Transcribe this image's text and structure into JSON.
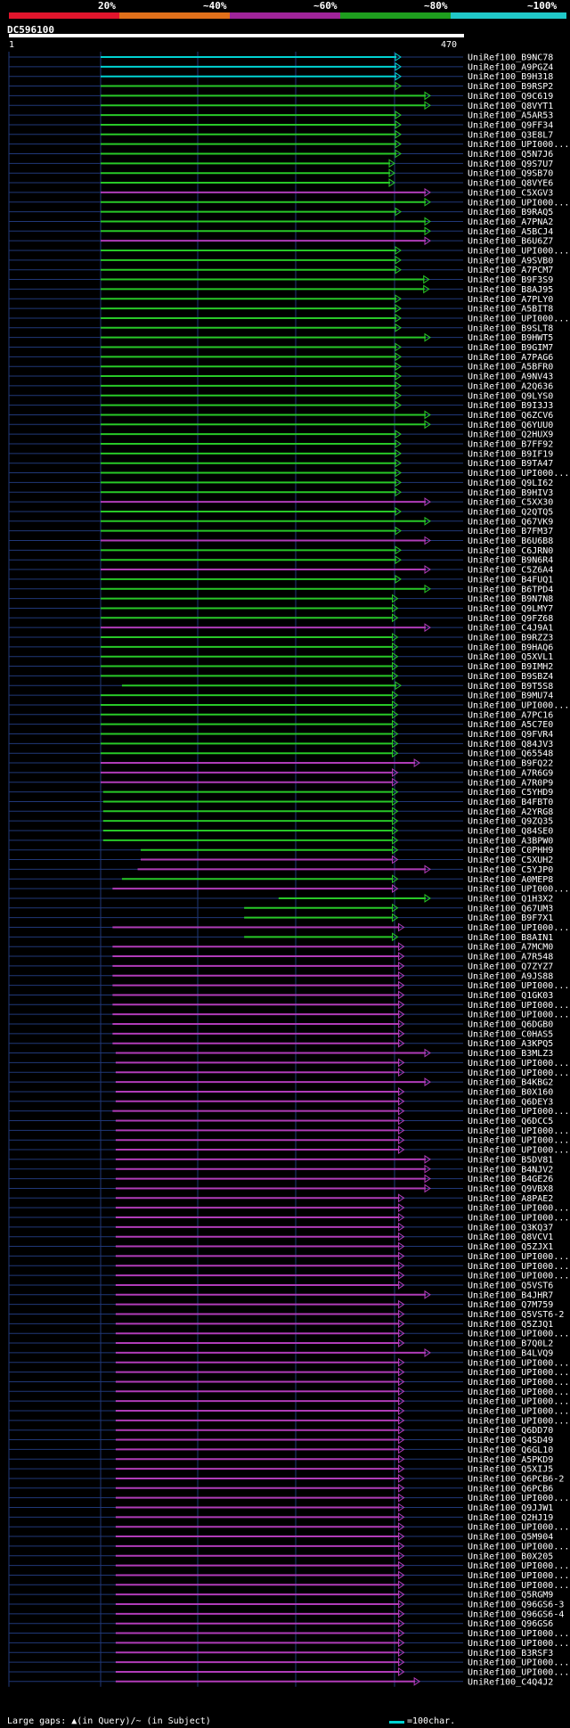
{
  "identity_scale": {
    "labels": [
      "20%",
      "~40%",
      "~60%",
      "~80%",
      "~100%"
    ],
    "colors": [
      "#e0152c",
      "#e0701a",
      "#a0249a",
      "#1e9e1e",
      "#20c8c8"
    ]
  },
  "query": {
    "id": "DC596100",
    "start": "1",
    "end": "470",
    "length": 470
  },
  "legend": {
    "gaps_text": "Large gaps: ▲(in Query)/~ (in Subject)",
    "scale_text": "=100char."
  },
  "colors": {
    "background": "#000000",
    "cyan": "#00d2d2",
    "green": "#28c828",
    "magenta": "#b03cb8",
    "triangle": "#ffff90",
    "gridline": "#203878"
  },
  "hits": [
    {
      "id": "UniRef100_B9NC78",
      "c": "c",
      "s": 1,
      "e": 480
    },
    {
      "id": "UniRef100_A9PGZ4",
      "c": "c",
      "s": 1,
      "e": 480
    },
    {
      "id": "UniRef100_B9H318",
      "c": "c",
      "s": 1,
      "e": 480
    },
    {
      "id": "UniRef100_B9RSP2",
      "c": "g",
      "s": 1,
      "e": 480
    },
    {
      "id": "UniRef100_Q9C619",
      "c": "g",
      "s": 1,
      "e": 530
    },
    {
      "id": "UniRef100_Q8VYT1",
      "c": "g",
      "s": 1,
      "e": 530
    },
    {
      "id": "UniRef100_A5AR53",
      "c": "g",
      "s": 1,
      "e": 480
    },
    {
      "id": "UniRef100_Q9FF34",
      "c": "g",
      "s": 1,
      "e": 480
    },
    {
      "id": "UniRef100_Q3E8L7",
      "c": "g",
      "s": 1,
      "e": 480
    },
    {
      "id": "UniRef100_UPI000...",
      "c": "g",
      "s": 1,
      "e": 480
    },
    {
      "id": "UniRef100_Q5N7J6",
      "c": "g",
      "s": 1,
      "e": 480
    },
    {
      "id": "UniRef100_Q9S7U7",
      "c": "g",
      "s": 1,
      "e": 470
    },
    {
      "id": "UniRef100_Q9SB70",
      "c": "g",
      "s": 1,
      "e": 470
    },
    {
      "id": "UniRef100_Q8VYE6",
      "c": "g",
      "s": 1,
      "e": 470
    },
    {
      "id": "UniRef100_C5XGV3",
      "c": "m",
      "s": 1,
      "e": 530
    },
    {
      "id": "UniRef100_UPI000...",
      "c": "g",
      "s": 1,
      "e": 530
    },
    {
      "id": "UniRef100_B9RAQ5",
      "c": "g",
      "s": 1,
      "e": 480
    },
    {
      "id": "UniRef100_A7PNA2",
      "c": "g",
      "s": 1,
      "e": 530
    },
    {
      "id": "UniRef100_A5BCJ4",
      "c": "g",
      "s": 1,
      "e": 530
    },
    {
      "id": "UniRef100_B6U6Z7",
      "c": "m",
      "s": 1,
      "e": 530
    },
    {
      "id": "UniRef100_UPI000...",
      "c": "g",
      "s": 1,
      "e": 480
    },
    {
      "id": "UniRef100_A9SVB0",
      "c": "g",
      "s": 1,
      "e": 480
    },
    {
      "id": "UniRef100_A7PCM7",
      "c": "g",
      "s": 1,
      "e": 480
    },
    {
      "id": "UniRef100_B9F3S9",
      "c": "g",
      "s": 1,
      "e": 525
    },
    {
      "id": "UniRef100_B8AJ95",
      "c": "g",
      "s": 1,
      "e": 525
    },
    {
      "id": "UniRef100_A7PLY0",
      "c": "g",
      "s": 1,
      "e": 480
    },
    {
      "id": "UniRef100_A5BIT8",
      "c": "g",
      "s": 1,
      "e": 480
    },
    {
      "id": "UniRef100_UPI000...",
      "c": "g",
      "s": 1,
      "e": 480
    },
    {
      "id": "UniRef100_B9SLT8",
      "c": "g",
      "s": 1,
      "e": 480
    },
    {
      "id": "UniRef100_B9HWT5",
      "c": "g",
      "s": 1,
      "e": 530
    },
    {
      "id": "UniRef100_B9GIM7",
      "c": "g",
      "s": 1,
      "e": 480
    },
    {
      "id": "UniRef100_A7PAG6",
      "c": "g",
      "s": 1,
      "e": 480
    },
    {
      "id": "UniRef100_A5BFR0",
      "c": "g",
      "s": 1,
      "e": 480
    },
    {
      "id": "UniRef100_A9NV43",
      "c": "g",
      "s": 1,
      "e": 480
    },
    {
      "id": "UniRef100_A2Q636",
      "c": "g",
      "s": 1,
      "e": 480
    },
    {
      "id": "UniRef100_Q9LYS0",
      "c": "g",
      "s": 1,
      "e": 480
    },
    {
      "id": "UniRef100_B9I3J3",
      "c": "g",
      "s": 1,
      "e": 480
    },
    {
      "id": "UniRef100_Q6ZCV6",
      "c": "g",
      "s": 1,
      "e": 530
    },
    {
      "id": "UniRef100_Q6YUU0",
      "c": "g",
      "s": 1,
      "e": 530
    },
    {
      "id": "UniRef100_Q2HUX9",
      "c": "g",
      "s": 1,
      "e": 480
    },
    {
      "id": "UniRef100_B7FF92",
      "c": "g",
      "s": 1,
      "e": 480
    },
    {
      "id": "UniRef100_B9IF19",
      "c": "g",
      "s": 1,
      "e": 480
    },
    {
      "id": "UniRef100_B9TA47",
      "c": "g",
      "s": 1,
      "e": 480
    },
    {
      "id": "UniRef100_UPI000...",
      "c": "g",
      "s": 1,
      "e": 480
    },
    {
      "id": "UniRef100_Q9LI62",
      "c": "g",
      "s": 1,
      "e": 480
    },
    {
      "id": "UniRef100_B9HIV3",
      "c": "g",
      "s": 1,
      "e": 480
    },
    {
      "id": "UniRef100_C5XX30",
      "c": "m",
      "s": 1,
      "e": 530
    },
    {
      "id": "UniRef100_Q2QTQ5",
      "c": "g",
      "s": 1,
      "e": 480
    },
    {
      "id": "UniRef100_Q67VK9",
      "c": "g",
      "s": 1,
      "e": 530
    },
    {
      "id": "UniRef100_B7FM37",
      "c": "g",
      "s": 1,
      "e": 480
    },
    {
      "id": "UniRef100_B6U6B8",
      "c": "m",
      "s": 1,
      "e": 530
    },
    {
      "id": "UniRef100_C6JRN0",
      "c": "g",
      "s": 1,
      "e": 480
    },
    {
      "id": "UniRef100_B9N6R4",
      "c": "g",
      "s": 1,
      "e": 480
    },
    {
      "id": "UniRef100_C5Z6A4",
      "c": "m",
      "s": 1,
      "e": 530
    },
    {
      "id": "UniRef100_B4FUQ1",
      "c": "g",
      "s": 1,
      "e": 480
    },
    {
      "id": "UniRef100_B6TPD4",
      "c": "g",
      "s": 1,
      "e": 530
    },
    {
      "id": "UniRef100_B9N7N8",
      "c": "g",
      "s": 1,
      "e": 475
    },
    {
      "id": "UniRef100_Q9LMY7",
      "c": "g",
      "s": 1,
      "e": 475
    },
    {
      "id": "UniRef100_Q9FZ68",
      "c": "g",
      "s": 1,
      "e": 475
    },
    {
      "id": "UniRef100_C4J9A1",
      "c": "m",
      "s": 1,
      "e": 530
    },
    {
      "id": "UniRef100_B9RZZ3",
      "c": "g",
      "s": 1,
      "e": 475
    },
    {
      "id": "UniRef100_B9HAQ6",
      "c": "g",
      "s": 1,
      "e": 475
    },
    {
      "id": "UniRef100_Q5XVL1",
      "c": "g",
      "s": 1,
      "e": 475
    },
    {
      "id": "UniRef100_B9IMH2",
      "c": "g",
      "s": 1,
      "e": 475
    },
    {
      "id": "UniRef100_B9SBZ4",
      "c": "g",
      "s": 1,
      "e": 475
    },
    {
      "id": "UniRef100_B9T5S8",
      "c": "g",
      "s": 35,
      "e": 480
    },
    {
      "id": "UniRef100_B9MU74",
      "c": "g",
      "s": 1,
      "e": 475
    },
    {
      "id": "UniRef100_UPI000...",
      "c": "g",
      "s": 1,
      "e": 475
    },
    {
      "id": "UniRef100_A7PC16",
      "c": "g",
      "s": 1,
      "e": 475
    },
    {
      "id": "UniRef100_A5C7E0",
      "c": "g",
      "s": 1,
      "e": 475
    },
    {
      "id": "UniRef100_Q9FVR4",
      "c": "g",
      "s": 1,
      "e": 475
    },
    {
      "id": "UniRef100_Q84JV3",
      "c": "g",
      "s": 1,
      "e": 475
    },
    {
      "id": "UniRef100_Q65548",
      "c": "g",
      "s": 1,
      "e": 475
    },
    {
      "id": "UniRef100_B9FQ22",
      "c": "m",
      "s": 1,
      "e": 510
    },
    {
      "id": "UniRef100_A7R6G9",
      "c": "m",
      "s": 1,
      "e": 475
    },
    {
      "id": "UniRef100_A7R0P9",
      "c": "m",
      "s": 1,
      "e": 475
    },
    {
      "id": "UniRef100_C5YHD9",
      "c": "g",
      "s": 5,
      "e": 475
    },
    {
      "id": "UniRef100_B4FBT0",
      "c": "g",
      "s": 5,
      "e": 475
    },
    {
      "id": "UniRef100_A2YRG8",
      "c": "g",
      "s": 5,
      "e": 475
    },
    {
      "id": "UniRef100_Q9ZQ35",
      "c": "g",
      "s": 5,
      "e": 475
    },
    {
      "id": "UniRef100_Q84SE0",
      "c": "g",
      "s": 5,
      "e": 475
    },
    {
      "id": "UniRef100_A3BPW0",
      "c": "g",
      "s": 5,
      "e": 475
    },
    {
      "id": "UniRef100_C0PHH9",
      "c": "g",
      "s": 65,
      "e": 475
    },
    {
      "id": "UniRef100_C5XUH2",
      "c": "m",
      "s": 65,
      "e": 475
    },
    {
      "id": "UniRef100_C5YJP0",
      "c": "m",
      "s": 60,
      "e": 530
    },
    {
      "id": "UniRef100_A0MEP8",
      "c": "g",
      "s": 35,
      "e": 475
    },
    {
      "id": "UniRef100_UPI000...",
      "c": "m",
      "s": 20,
      "e": 475
    },
    {
      "id": "UniRef100_Q1H3X2",
      "c": "g",
      "s": 285,
      "e": 530
    },
    {
      "id": "UniRef100_Q67UM3",
      "c": "g",
      "s": 230,
      "e": 475
    },
    {
      "id": "UniRef100_B9F7X1",
      "c": "g",
      "s": 230,
      "e": 475
    },
    {
      "id": "UniRef100_UPI000...",
      "c": "m",
      "s": 20,
      "e": 485
    },
    {
      "id": "UniRef100_B8AIN1",
      "c": "g",
      "s": 230,
      "e": 475
    },
    {
      "id": "UniRef100_A7MCM0",
      "c": "m",
      "s": 20,
      "e": 485
    },
    {
      "id": "UniRef100_A7R548",
      "c": "m",
      "s": 20,
      "e": 485
    },
    {
      "id": "UniRef100_Q7ZYZ7",
      "c": "m",
      "s": 20,
      "e": 485
    },
    {
      "id": "UniRef100_A9JS88",
      "c": "m",
      "s": 20,
      "e": 485
    },
    {
      "id": "UniRef100_UPI000...",
      "c": "m",
      "s": 20,
      "e": 485
    },
    {
      "id": "UniRef100_Q1GK03",
      "c": "m",
      "s": 20,
      "e": 485
    },
    {
      "id": "UniRef100_UPI000...",
      "c": "m",
      "s": 20,
      "e": 485
    },
    {
      "id": "UniRef100_UPI000...",
      "c": "m",
      "s": 20,
      "e": 485
    },
    {
      "id": "UniRef100_Q6DGB0",
      "c": "m",
      "s": 20,
      "e": 485
    },
    {
      "id": "UniRef100_C0HAS5",
      "c": "m",
      "s": 20,
      "e": 485
    },
    {
      "id": "UniRef100_A3KPQ5",
      "c": "m",
      "s": 20,
      "e": 485
    },
    {
      "id": "UniRef100_B3MLZ3",
      "c": "m",
      "s": 25,
      "e": 530
    },
    {
      "id": "UniRef100_UPI000...",
      "c": "m",
      "s": 25,
      "e": 485
    },
    {
      "id": "UniRef100_UPI000...",
      "c": "m",
      "s": 25,
      "e": 485
    },
    {
      "id": "UniRef100_B4KBG2",
      "c": "m",
      "s": 25,
      "e": 530
    },
    {
      "id": "UniRef100_B0X160",
      "c": "m",
      "s": 25,
      "e": 485
    },
    {
      "id": "UniRef100_Q6DEY3",
      "c": "m",
      "s": 25,
      "e": 485
    },
    {
      "id": "UniRef100_UPI000...",
      "c": "m",
      "s": 20,
      "e": 485
    },
    {
      "id": "UniRef100_Q6DCC5",
      "c": "m",
      "s": 25,
      "e": 485
    },
    {
      "id": "UniRef100_UPI000...",
      "c": "m",
      "s": 25,
      "e": 485
    },
    {
      "id": "UniRef100_UPI000...",
      "c": "m",
      "s": 25,
      "e": 485
    },
    {
      "id": "UniRef100_UPI000...",
      "c": "m",
      "s": 25,
      "e": 485
    },
    {
      "id": "UniRef100_B5DV81",
      "c": "m",
      "s": 25,
      "e": 530
    },
    {
      "id": "UniRef100_B4NJV2",
      "c": "m",
      "s": 25,
      "e": 530
    },
    {
      "id": "UniRef100_B4GE26",
      "c": "m",
      "s": 25,
      "e": 530
    },
    {
      "id": "UniRef100_Q9VBX8",
      "c": "m",
      "s": 25,
      "e": 530
    },
    {
      "id": "UniRef100_A8PAE2",
      "c": "m",
      "s": 25,
      "e": 485
    },
    {
      "id": "UniRef100_UPI000...",
      "c": "m",
      "s": 25,
      "e": 485
    },
    {
      "id": "UniRef100_UPI000...",
      "c": "m",
      "s": 25,
      "e": 485
    },
    {
      "id": "UniRef100_Q3KQ37",
      "c": "m",
      "s": 25,
      "e": 485
    },
    {
      "id": "UniRef100_Q8VCV1",
      "c": "m",
      "s": 25,
      "e": 485
    },
    {
      "id": "UniRef100_Q5ZJX1",
      "c": "m",
      "s": 25,
      "e": 485
    },
    {
      "id": "UniRef100_UPI000...",
      "c": "m",
      "s": 25,
      "e": 485
    },
    {
      "id": "UniRef100_UPI000...",
      "c": "m",
      "s": 25,
      "e": 485
    },
    {
      "id": "UniRef100_UPI000...",
      "c": "m",
      "s": 25,
      "e": 485
    },
    {
      "id": "UniRef100_Q5VST6",
      "c": "m",
      "s": 25,
      "e": 485
    },
    {
      "id": "UniRef100_B4JHR7",
      "c": "m",
      "s": 25,
      "e": 530
    },
    {
      "id": "UniRef100_Q7M759",
      "c": "m",
      "s": 25,
      "e": 485
    },
    {
      "id": "UniRef100_Q5VST6-2",
      "c": "m",
      "s": 25,
      "e": 485
    },
    {
      "id": "UniRef100_Q5ZJQ1",
      "c": "m",
      "s": 25,
      "e": 485
    },
    {
      "id": "UniRef100_UPI000...",
      "c": "m",
      "s": 25,
      "e": 485
    },
    {
      "id": "UniRef100_B7Q0L2",
      "c": "m",
      "s": 25,
      "e": 485
    },
    {
      "id": "UniRef100_B4LVQ9",
      "c": "m",
      "s": 25,
      "e": 530
    },
    {
      "id": "UniRef100_UPI000...",
      "c": "m",
      "s": 25,
      "e": 485
    },
    {
      "id": "UniRef100_UPI000...",
      "c": "m",
      "s": 25,
      "e": 485
    },
    {
      "id": "UniRef100_UPI000...",
      "c": "m",
      "s": 25,
      "e": 485
    },
    {
      "id": "UniRef100_UPI000...",
      "c": "m",
      "s": 25,
      "e": 485
    },
    {
      "id": "UniRef100_UPI000...",
      "c": "m",
      "s": 25,
      "e": 485
    },
    {
      "id": "UniRef100_UPI000...",
      "c": "m",
      "s": 25,
      "e": 485
    },
    {
      "id": "UniRef100_UPI000...",
      "c": "m",
      "s": 25,
      "e": 485
    },
    {
      "id": "UniRef100_Q6DD70",
      "c": "m",
      "s": 25,
      "e": 485
    },
    {
      "id": "UniRef100_Q4SD49",
      "c": "m",
      "s": 25,
      "e": 485
    },
    {
      "id": "UniRef100_Q6GL10",
      "c": "m",
      "s": 25,
      "e": 485
    },
    {
      "id": "UniRef100_A5PKD9",
      "c": "m",
      "s": 25,
      "e": 485
    },
    {
      "id": "UniRef100_Q5XIJ5",
      "c": "m",
      "s": 25,
      "e": 485
    },
    {
      "id": "UniRef100_Q6PCB6-2",
      "c": "m",
      "s": 25,
      "e": 485
    },
    {
      "id": "UniRef100_Q6PCB6",
      "c": "m",
      "s": 25,
      "e": 485
    },
    {
      "id": "UniRef100_UPI000...",
      "c": "m",
      "s": 25,
      "e": 485
    },
    {
      "id": "UniRef100_Q9JJW1",
      "c": "m",
      "s": 25,
      "e": 485
    },
    {
      "id": "UniRef100_Q2HJ19",
      "c": "m",
      "s": 25,
      "e": 485
    },
    {
      "id": "UniRef100_UPI000...",
      "c": "m",
      "s": 25,
      "e": 485
    },
    {
      "id": "UniRef100_Q5M904",
      "c": "m",
      "s": 25,
      "e": 485
    },
    {
      "id": "UniRef100_UPI000...",
      "c": "m",
      "s": 25,
      "e": 485
    },
    {
      "id": "UniRef100_B0X205",
      "c": "m",
      "s": 25,
      "e": 485
    },
    {
      "id": "UniRef100_UPI000...",
      "c": "m",
      "s": 25,
      "e": 485
    },
    {
      "id": "UniRef100_UPI000...",
      "c": "m",
      "s": 25,
      "e": 485
    },
    {
      "id": "UniRef100_UPI000...",
      "c": "m",
      "s": 25,
      "e": 485
    },
    {
      "id": "UniRef100_Q5RGM9",
      "c": "m",
      "s": 25,
      "e": 485
    },
    {
      "id": "UniRef100_Q96GS6-3",
      "c": "m",
      "s": 25,
      "e": 485
    },
    {
      "id": "UniRef100_Q96GS6-4",
      "c": "m",
      "s": 25,
      "e": 485
    },
    {
      "id": "UniRef100_Q96GS6",
      "c": "m",
      "s": 25,
      "e": 485
    },
    {
      "id": "UniRef100_UPI000...",
      "c": "m",
      "s": 25,
      "e": 485
    },
    {
      "id": "UniRef100_UPI000...",
      "c": "m",
      "s": 25,
      "e": 485
    },
    {
      "id": "UniRef100_B3RSF3",
      "c": "m",
      "s": 25,
      "e": 485
    },
    {
      "id": "UniRef100_UPI000...",
      "c": "m",
      "s": 25,
      "e": 485
    },
    {
      "id": "UniRef100_UPI000...",
      "c": "m",
      "s": 25,
      "e": 485
    },
    {
      "id": "UniRef100_C4Q4J2",
      "c": "m",
      "s": 25,
      "e": 510
    }
  ]
}
